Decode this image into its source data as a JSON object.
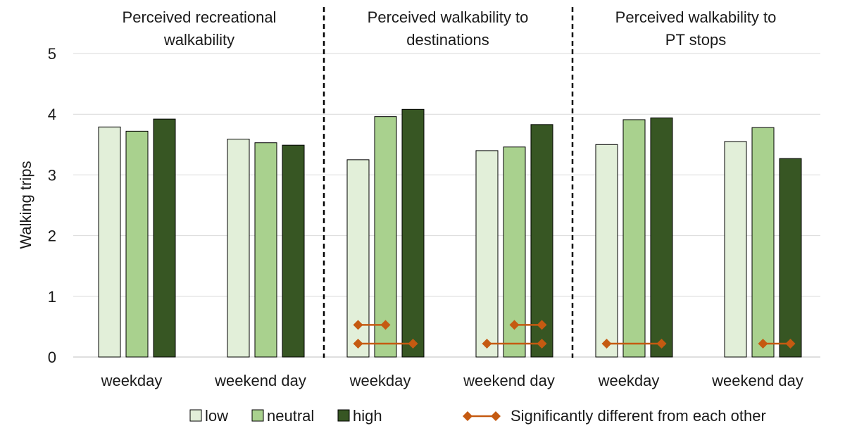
{
  "chart_data": {
    "type": "bar",
    "ylabel": "Walking trips",
    "ylim": [
      0,
      5
    ],
    "yticks": [
      0,
      1,
      2,
      3,
      4,
      5
    ],
    "grid": true,
    "panels": [
      {
        "title_lines": [
          "Perceived recreational",
          "walkability"
        ],
        "groups": [
          {
            "label": "weekday",
            "values": [
              3.79,
              3.72,
              3.92
            ],
            "sig_pairs": []
          },
          {
            "label": "weekend day",
            "values": [
              3.59,
              3.53,
              3.49
            ],
            "sig_pairs": []
          }
        ]
      },
      {
        "title_lines": [
          "Perceived walkability to",
          "destinations"
        ],
        "groups": [
          {
            "label": "weekday",
            "values": [
              3.25,
              3.96,
              4.08
            ],
            "sig_pairs": [
              [
                0,
                1
              ],
              [
                0,
                2
              ]
            ]
          },
          {
            "label": "weekend day",
            "values": [
              3.4,
              3.46,
              3.83
            ],
            "sig_pairs": [
              [
                1,
                2
              ],
              [
                0,
                2
              ]
            ]
          }
        ]
      },
      {
        "title_lines": [
          "Perceived walkability to",
          "PT stops"
        ],
        "groups": [
          {
            "label": "weekday",
            "values": [
              3.5,
              3.91,
              3.94
            ],
            "sig_pairs": [
              [
                0,
                2
              ]
            ]
          },
          {
            "label": "weekend day",
            "values": [
              3.55,
              3.78,
              3.27
            ],
            "sig_pairs": [
              [
                1,
                2
              ]
            ]
          }
        ]
      }
    ],
    "series": [
      {
        "name": "low",
        "color": "#e2efd9"
      },
      {
        "name": "neutral",
        "color": "#a9d18e"
      },
      {
        "name": "high",
        "color": "#375623"
      }
    ],
    "significance": {
      "label": "Significantly different from each other",
      "color": "#c55a11"
    },
    "legend_position": "bottom"
  }
}
